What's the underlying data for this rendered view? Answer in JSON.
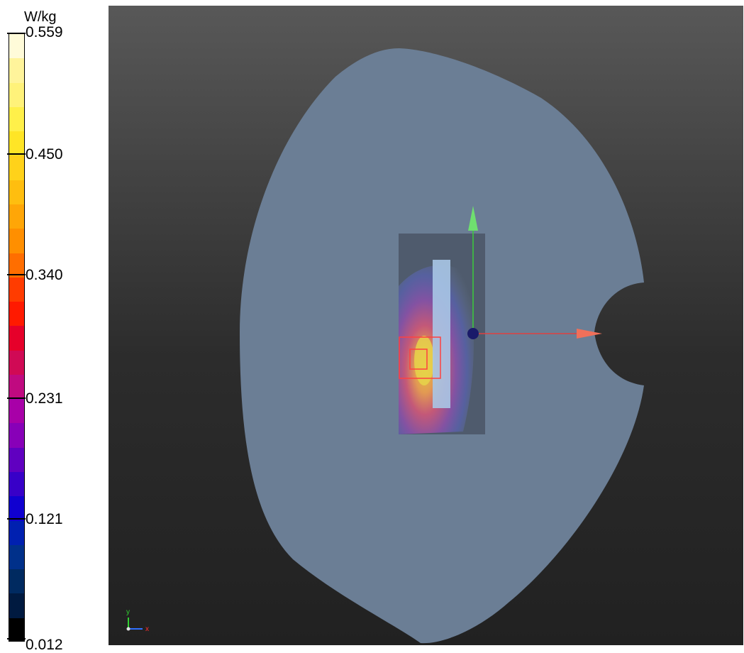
{
  "legend": {
    "unit": "W/kg",
    "ticks": [
      "0.559",
      "0.450",
      "0.340",
      "0.231",
      "0.121",
      "0.012"
    ],
    "colors": [
      "#fffbd9",
      "#fff49b",
      "#fff27a",
      "#fff04a",
      "#ffe526",
      "#ffd21a",
      "#ffbe0f",
      "#ffa607",
      "#ff8f00",
      "#ff6e00",
      "#ff3c00",
      "#ff1a00",
      "#e6002a",
      "#d00a55",
      "#c00a80",
      "#a800a8",
      "#8800b8",
      "#6000c0",
      "#3800c8",
      "#1000d0",
      "#0020b0",
      "#00308a",
      "#002a60",
      "#001a40",
      "#000000"
    ]
  },
  "viewport": {
    "background": "#3a3a3a",
    "phantom_color": "#6b7e95",
    "icons": [
      "y-axis-arrow-icon",
      "x-axis-arrow-icon",
      "origin-sphere-icon",
      "orientation-triad-icon"
    ],
    "triad": {
      "x_label": "x",
      "y_label": "y"
    }
  }
}
